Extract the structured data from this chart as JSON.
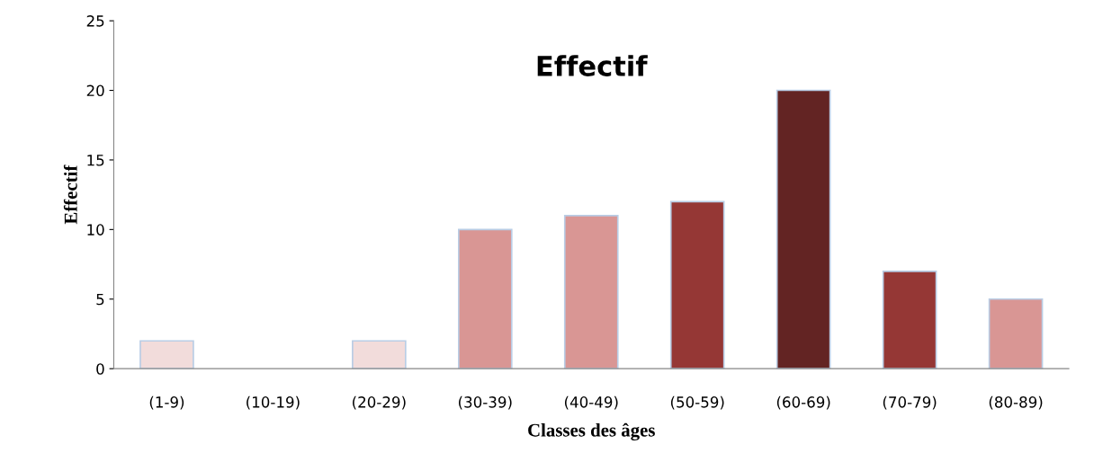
{
  "chart_data": {
    "type": "bar",
    "title": "Effectif",
    "xlabel": "Classes des âges",
    "ylabel": "Effectif",
    "categories": [
      "(1-9)",
      "(10-19)",
      "(20-29)",
      "(30-39)",
      "(40-49)",
      "(50-59)",
      "(60-69)",
      "(70-79)",
      "(80-89)"
    ],
    "values": [
      2,
      0,
      2,
      10,
      11,
      12,
      20,
      7,
      5
    ],
    "colors": [
      "#f2dcdb",
      "#f2dcdb",
      "#f2dcdb",
      "#d99694",
      "#d99694",
      "#953735",
      "#632423",
      "#953735",
      "#d99694"
    ],
    "ylim": [
      0,
      25
    ],
    "yticks": [
      0,
      5,
      10,
      15,
      20,
      25
    ],
    "grid": false,
    "legend": false
  }
}
